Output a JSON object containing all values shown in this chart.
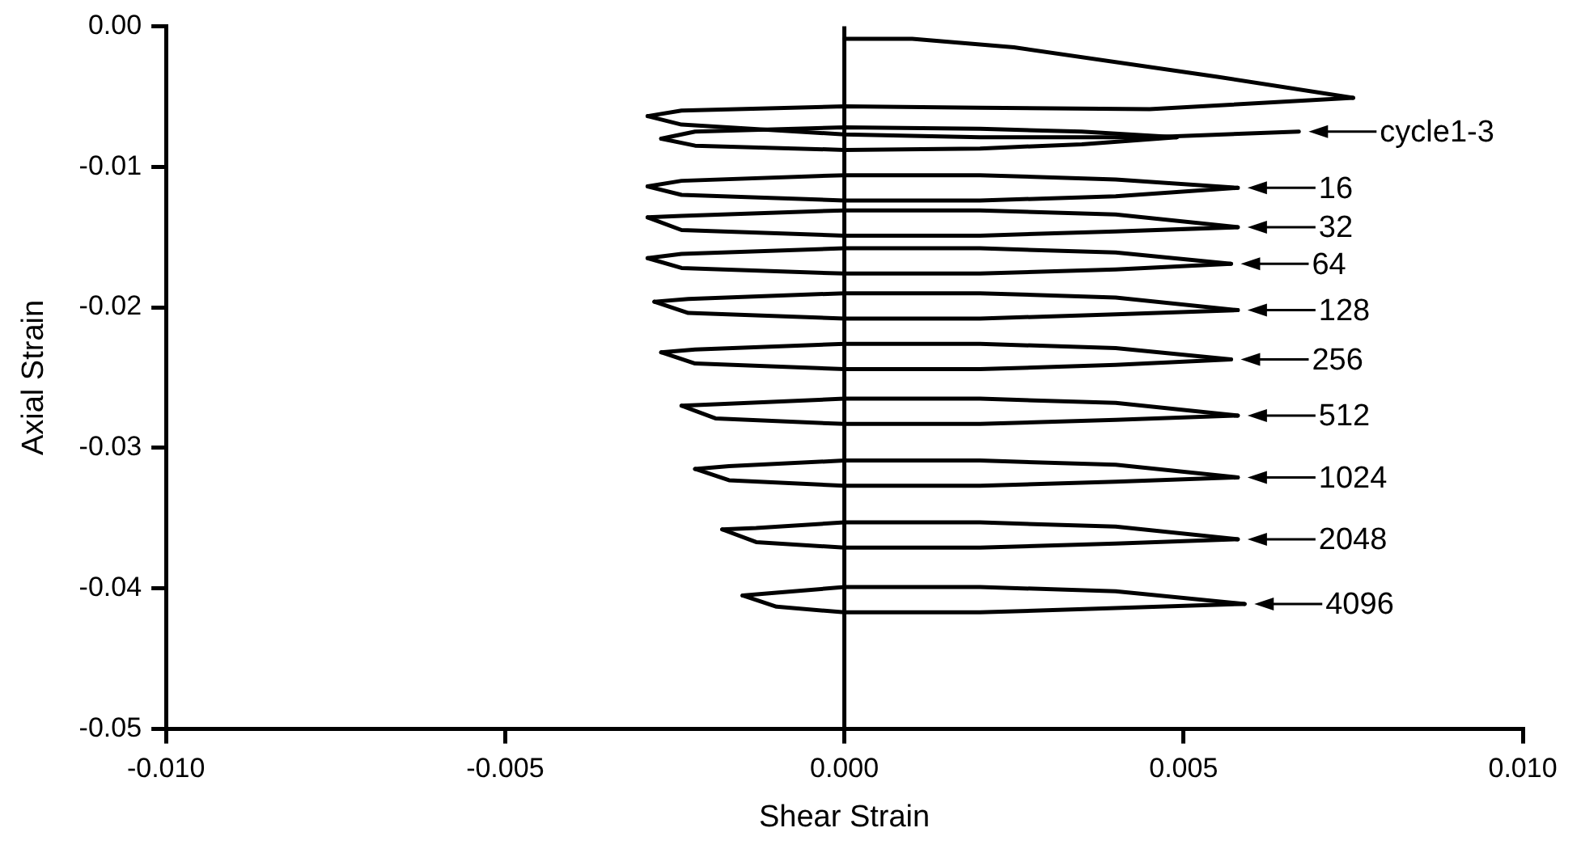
{
  "chart_data": {
    "type": "line",
    "xlabel": "Shear Strain",
    "ylabel": "Axial Strain",
    "xlim": [
      -0.01,
      0.01
    ],
    "ylim": [
      -0.05,
      0
    ],
    "xticks": [
      {
        "value": -0.01,
        "label": "-0.010"
      },
      {
        "value": -0.005,
        "label": "-0.005"
      },
      {
        "value": 0,
        "label": "0.000"
      },
      {
        "value": 0.005,
        "label": "0.005"
      },
      {
        "value": 0.01,
        "label": "0.010"
      }
    ],
    "yticks": [
      {
        "value": 0,
        "label": "0.00"
      },
      {
        "value": -0.01,
        "label": "-0.01"
      },
      {
        "value": -0.02,
        "label": "-0.02"
      },
      {
        "value": -0.03,
        "label": "-0.03"
      },
      {
        "value": -0.04,
        "label": "-0.04"
      },
      {
        "value": -0.05,
        "label": "-0.05"
      }
    ],
    "grid": false,
    "legend": false,
    "marker": "none",
    "line_style": "solid",
    "ref_lines": [
      {
        "axis": "x",
        "value": 0,
        "color": "#000000"
      }
    ],
    "series": [
      {
        "color": "#000000",
        "x": [
          0,
          0.001,
          0.0025,
          0.0055,
          0.0075
        ],
        "values": [
          -0.0009,
          -0.0009,
          -0.0015,
          -0.0036,
          -0.0051
        ]
      },
      {
        "color": "#000000",
        "x": [
          -0.0029,
          -0.0024,
          0,
          0.002,
          0.0045,
          0.0075
        ],
        "values": [
          -0.0064,
          -0.006,
          -0.0057,
          -0.0058,
          -0.0059,
          -0.0051
        ]
      },
      {
        "color": "#000000",
        "x": [
          -0.0029,
          -0.0024,
          0,
          0.002,
          0.0045,
          0.0067
        ],
        "values": [
          -0.0064,
          -0.007,
          -0.0077,
          -0.0079,
          -0.0079,
          -0.0075
        ]
      },
      {
        "color": "#000000",
        "x": [
          -0.0027,
          -0.0022,
          0,
          0.002,
          0.0035,
          0.0049
        ],
        "values": [
          -0.008,
          -0.0075,
          -0.0072,
          -0.0073,
          -0.0075,
          -0.0079
        ]
      },
      {
        "color": "#000000",
        "x": [
          -0.0027,
          -0.0022,
          0,
          0.002,
          0.0035,
          0.0049
        ],
        "values": [
          -0.008,
          -0.0085,
          -0.0088,
          -0.0087,
          -0.0084,
          -0.0079
        ]
      },
      {
        "color": "#000000",
        "x": [
          -0.0029,
          -0.0024,
          0,
          0.002,
          0.004,
          0.0058
        ],
        "values": [
          -0.0114,
          -0.011,
          -0.0106,
          -0.0106,
          -0.0109,
          -0.0115
        ]
      },
      {
        "color": "#000000",
        "x": [
          -0.0029,
          -0.0024,
          0,
          0.002,
          0.004,
          0.0058
        ],
        "values": [
          -0.0114,
          -0.012,
          -0.0124,
          -0.0124,
          -0.0121,
          -0.0115
        ]
      },
      {
        "color": "#000000",
        "x": [
          -0.0029,
          -0.0024,
          0,
          0.002,
          0.004,
          0.0058
        ],
        "values": [
          -0.0136,
          -0.0135,
          -0.0131,
          -0.0131,
          -0.0134,
          -0.0143
        ]
      },
      {
        "color": "#000000",
        "x": [
          -0.0029,
          -0.0024,
          0,
          0.002,
          0.004,
          0.0058
        ],
        "values": [
          -0.0136,
          -0.0145,
          -0.0149,
          -0.0149,
          -0.0146,
          -0.0143
        ]
      },
      {
        "color": "#000000",
        "x": [
          -0.0029,
          -0.0024,
          0,
          0.002,
          0.004,
          0.0057
        ],
        "values": [
          -0.0165,
          -0.0162,
          -0.0158,
          -0.0158,
          -0.0161,
          -0.0169
        ]
      },
      {
        "color": "#000000",
        "x": [
          -0.0029,
          -0.0024,
          0,
          0.002,
          0.004,
          0.0057
        ],
        "values": [
          -0.0165,
          -0.0172,
          -0.0176,
          -0.0176,
          -0.0173,
          -0.0169
        ]
      },
      {
        "color": "#000000",
        "x": [
          -0.0028,
          -0.0023,
          0,
          0.002,
          0.004,
          0.0058
        ],
        "values": [
          -0.0196,
          -0.0194,
          -0.019,
          -0.019,
          -0.0193,
          -0.0202
        ]
      },
      {
        "color": "#000000",
        "x": [
          -0.0028,
          -0.0023,
          0,
          0.002,
          0.004,
          0.0058
        ],
        "values": [
          -0.0196,
          -0.0204,
          -0.0208,
          -0.0208,
          -0.0205,
          -0.0202
        ]
      },
      {
        "color": "#000000",
        "x": [
          -0.0027,
          -0.0022,
          0,
          0.002,
          0.004,
          0.0057
        ],
        "values": [
          -0.0232,
          -0.023,
          -0.0226,
          -0.0226,
          -0.0229,
          -0.0237
        ]
      },
      {
        "color": "#000000",
        "x": [
          -0.0027,
          -0.0022,
          0,
          0.002,
          0.004,
          0.0057
        ],
        "values": [
          -0.0232,
          -0.024,
          -0.0244,
          -0.0244,
          -0.0241,
          -0.0237
        ]
      },
      {
        "color": "#000000",
        "x": [
          -0.0024,
          -0.0019,
          0,
          0.002,
          0.004,
          0.0058
        ],
        "values": [
          -0.027,
          -0.0269,
          -0.0265,
          -0.0265,
          -0.0268,
          -0.0277
        ]
      },
      {
        "color": "#000000",
        "x": [
          -0.0024,
          -0.0019,
          0,
          0.002,
          0.004,
          0.0058
        ],
        "values": [
          -0.027,
          -0.0279,
          -0.0283,
          -0.0283,
          -0.028,
          -0.0277
        ]
      },
      {
        "color": "#000000",
        "x": [
          -0.0022,
          -0.0017,
          0,
          0.002,
          0.004,
          0.0058
        ],
        "values": [
          -0.0315,
          -0.0313,
          -0.0309,
          -0.0309,
          -0.0312,
          -0.0321
        ]
      },
      {
        "color": "#000000",
        "x": [
          -0.0022,
          -0.0017,
          0,
          0.002,
          0.004,
          0.0058
        ],
        "values": [
          -0.0315,
          -0.0323,
          -0.0327,
          -0.0327,
          -0.0324,
          -0.0321
        ]
      },
      {
        "color": "#000000",
        "x": [
          -0.0018,
          -0.0013,
          0,
          0.002,
          0.004,
          0.0058
        ],
        "values": [
          -0.0358,
          -0.0357,
          -0.0353,
          -0.0353,
          -0.0356,
          -0.0365
        ]
      },
      {
        "color": "#000000",
        "x": [
          -0.0018,
          -0.0013,
          0,
          0.002,
          0.004,
          0.0058
        ],
        "values": [
          -0.0358,
          -0.0367,
          -0.0371,
          -0.0371,
          -0.0368,
          -0.0365
        ]
      },
      {
        "color": "#000000",
        "x": [
          -0.0015,
          -0.001,
          0,
          0.002,
          0.004,
          0.0059
        ],
        "values": [
          -0.0405,
          -0.0403,
          -0.0399,
          -0.0399,
          -0.0402,
          -0.0411
        ]
      },
      {
        "color": "#000000",
        "x": [
          -0.0015,
          -0.001,
          0,
          0.002,
          0.004,
          0.0059
        ],
        "values": [
          -0.0405,
          -0.0413,
          -0.0417,
          -0.0417,
          -0.0414,
          -0.0411
        ]
      }
    ],
    "annotations": [
      {
        "text": "cycle1-3",
        "x": 0.0067,
        "y": -0.0075
      },
      {
        "text": "16",
        "x": 0.0058,
        "y": -0.0115
      },
      {
        "text": "32",
        "x": 0.0058,
        "y": -0.0143
      },
      {
        "text": "64",
        "x": 0.0057,
        "y": -0.0169
      },
      {
        "text": "128",
        "x": 0.0058,
        "y": -0.0202
      },
      {
        "text": "256",
        "x": 0.0057,
        "y": -0.0237
      },
      {
        "text": "512",
        "x": 0.0058,
        "y": -0.0277
      },
      {
        "text": "1024",
        "x": 0.0058,
        "y": -0.0321
      },
      {
        "text": "2048",
        "x": 0.0058,
        "y": -0.0365
      },
      {
        "text": "4096",
        "x": 0.0059,
        "y": -0.0411
      }
    ]
  }
}
